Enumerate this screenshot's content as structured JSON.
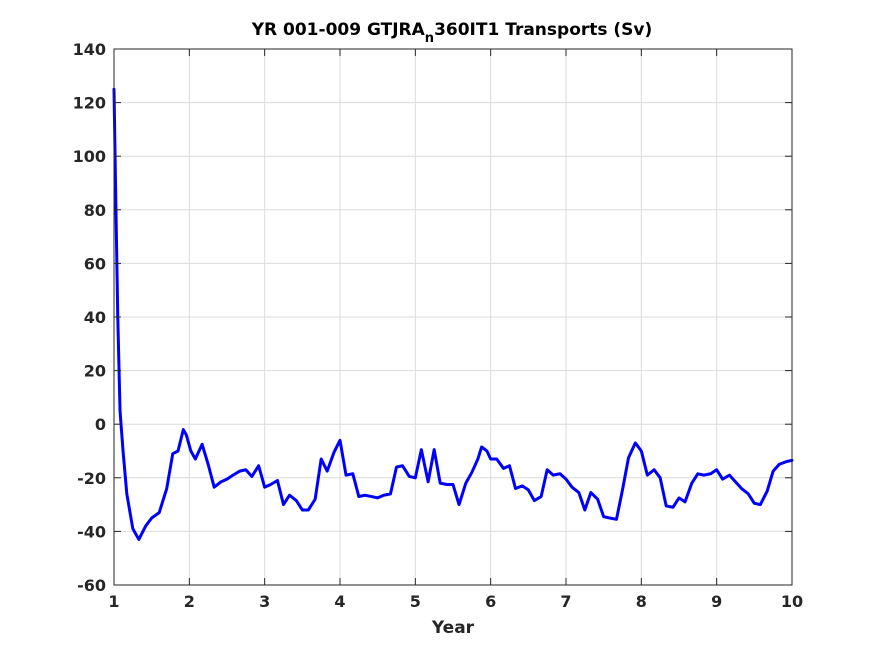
{
  "chart_data": {
    "type": "line",
    "title": {
      "main": "YR 001-009 GTJRA",
      "subscript": "n",
      "rest": "360IT1 Transports (Sv)"
    },
    "xlabel": "Year",
    "ylabel": "",
    "xlim": [
      1,
      10
    ],
    "ylim": [
      -60,
      140
    ],
    "xticks": [
      1,
      2,
      3,
      4,
      5,
      6,
      7,
      8,
      9,
      10
    ],
    "yticks": [
      -60,
      -40,
      -20,
      0,
      20,
      40,
      60,
      80,
      100,
      120,
      140
    ],
    "grid": true,
    "series": [
      {
        "color": "#0000ff",
        "points": [
          [
            1.0,
            125
          ],
          [
            1.02,
            90
          ],
          [
            1.05,
            40
          ],
          [
            1.08,
            5
          ],
          [
            1.12,
            -10
          ],
          [
            1.17,
            -26
          ],
          [
            1.25,
            -39
          ],
          [
            1.33,
            -43
          ],
          [
            1.42,
            -38
          ],
          [
            1.5,
            -35
          ],
          [
            1.6,
            -33
          ],
          [
            1.7,
            -24
          ],
          [
            1.78,
            -11
          ],
          [
            1.85,
            -10
          ],
          [
            1.92,
            -2
          ],
          [
            1.96,
            -4
          ],
          [
            2.02,
            -10
          ],
          [
            2.08,
            -13
          ],
          [
            2.17,
            -7.5
          ],
          [
            2.25,
            -15
          ],
          [
            2.33,
            -23.5
          ],
          [
            2.42,
            -21.5
          ],
          [
            2.5,
            -20.5
          ],
          [
            2.58,
            -19
          ],
          [
            2.67,
            -17.5
          ],
          [
            2.75,
            -17
          ],
          [
            2.83,
            -19.5
          ],
          [
            2.92,
            -15.5
          ],
          [
            3.0,
            -23.5
          ],
          [
            3.08,
            -22.5
          ],
          [
            3.17,
            -21
          ],
          [
            3.25,
            -30
          ],
          [
            3.33,
            -26.5
          ],
          [
            3.42,
            -28.5
          ],
          [
            3.5,
            -32
          ],
          [
            3.58,
            -32
          ],
          [
            3.67,
            -28
          ],
          [
            3.75,
            -13
          ],
          [
            3.83,
            -17.5
          ],
          [
            3.92,
            -10.5
          ],
          [
            4.0,
            -6
          ],
          [
            4.08,
            -19
          ],
          [
            4.17,
            -18.5
          ],
          [
            4.25,
            -27
          ],
          [
            4.33,
            -26.5
          ],
          [
            4.42,
            -27
          ],
          [
            4.5,
            -27.5
          ],
          [
            4.58,
            -26.5
          ],
          [
            4.67,
            -26
          ],
          [
            4.75,
            -16
          ],
          [
            4.83,
            -15.5
          ],
          [
            4.92,
            -19.5
          ],
          [
            5.0,
            -20
          ],
          [
            5.08,
            -9.5
          ],
          [
            5.17,
            -21.5
          ],
          [
            5.25,
            -9.5
          ],
          [
            5.33,
            -22
          ],
          [
            5.42,
            -22.5
          ],
          [
            5.5,
            -22.5
          ],
          [
            5.58,
            -30
          ],
          [
            5.67,
            -22
          ],
          [
            5.75,
            -18
          ],
          [
            5.83,
            -13
          ],
          [
            5.88,
            -8.5
          ],
          [
            5.95,
            -10
          ],
          [
            6.0,
            -13
          ],
          [
            6.08,
            -13
          ],
          [
            6.17,
            -16.5
          ],
          [
            6.25,
            -15.5
          ],
          [
            6.33,
            -24
          ],
          [
            6.42,
            -23
          ],
          [
            6.5,
            -24.5
          ],
          [
            6.58,
            -28.5
          ],
          [
            6.67,
            -27
          ],
          [
            6.75,
            -17
          ],
          [
            6.83,
            -19
          ],
          [
            6.92,
            -18.5
          ],
          [
            7.0,
            -20.5
          ],
          [
            7.08,
            -23.5
          ],
          [
            7.17,
            -25.5
          ],
          [
            7.25,
            -32
          ],
          [
            7.33,
            -25.5
          ],
          [
            7.42,
            -28
          ],
          [
            7.5,
            -34.5
          ],
          [
            7.58,
            -35
          ],
          [
            7.67,
            -35.5
          ],
          [
            7.75,
            -24.5
          ],
          [
            7.83,
            -12.5
          ],
          [
            7.92,
            -7
          ],
          [
            8.0,
            -10
          ],
          [
            8.08,
            -19
          ],
          [
            8.17,
            -17
          ],
          [
            8.25,
            -20
          ],
          [
            8.33,
            -30.5
          ],
          [
            8.42,
            -31
          ],
          [
            8.5,
            -27.5
          ],
          [
            8.58,
            -29
          ],
          [
            8.67,
            -22
          ],
          [
            8.75,
            -18.5
          ],
          [
            8.83,
            -19
          ],
          [
            8.92,
            -18.5
          ],
          [
            9.0,
            -17
          ],
          [
            9.08,
            -20.5
          ],
          [
            9.17,
            -19
          ],
          [
            9.25,
            -21.5
          ],
          [
            9.33,
            -24
          ],
          [
            9.42,
            -26
          ],
          [
            9.5,
            -29.5
          ],
          [
            9.58,
            -30
          ],
          [
            9.67,
            -25
          ],
          [
            9.75,
            -17.5
          ],
          [
            9.83,
            -15
          ],
          [
            9.92,
            -14
          ],
          [
            10.0,
            -13.5
          ]
        ]
      }
    ]
  }
}
